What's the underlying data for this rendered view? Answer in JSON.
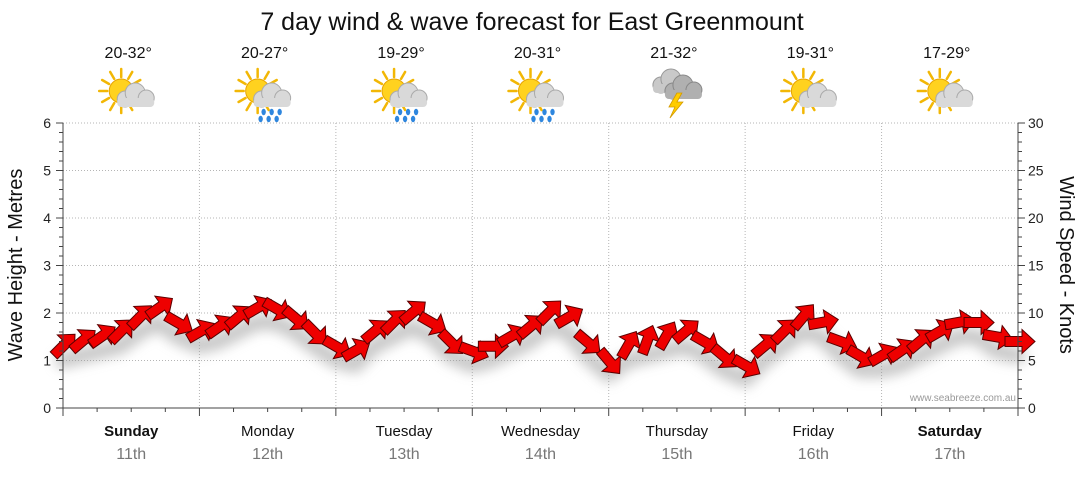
{
  "chart_data": {
    "type": "line",
    "title": "7 day wind & wave forecast for East Greenmount",
    "ylabel_left": "Wave Height - Metres",
    "ylabel_right": "Wind Speed - Knots",
    "ylim_left": [
      0,
      6
    ],
    "ylim_right": [
      0,
      30
    ],
    "yticks_left": [
      "0",
      "1",
      "2",
      "3",
      "4",
      "5",
      "6"
    ],
    "yticks_right": [
      "0",
      "5",
      "10",
      "15",
      "20",
      "25",
      "30"
    ],
    "grid": true,
    "watermark": "www.seabreeze.com.au",
    "days": [
      {
        "name": "Sunday",
        "date": "11th",
        "temp": "20-32°",
        "icon": "sun-cloud-icon",
        "bold": true
      },
      {
        "name": "Monday",
        "date": "12th",
        "temp": "20-27°",
        "icon": "sun-cloud-rain-icon",
        "bold": false
      },
      {
        "name": "Tuesday",
        "date": "13th",
        "temp": "19-29°",
        "icon": "sun-cloud-rain-icon",
        "bold": false
      },
      {
        "name": "Wednesday",
        "date": "14th",
        "temp": "20-31°",
        "icon": "sun-cloud-rain-icon",
        "bold": false
      },
      {
        "name": "Thursday",
        "date": "15th",
        "temp": "21-32°",
        "icon": "storm-cloud-icon",
        "bold": false
      },
      {
        "name": "Friday",
        "date": "16th",
        "temp": "19-31°",
        "icon": "sun-cloud-icon",
        "bold": false
      },
      {
        "name": "Saturday",
        "date": "17th",
        "temp": "17-29°",
        "icon": "sun-cloud-icon",
        "bold": true
      }
    ],
    "series": [
      {
        "unit": "knots",
        "color": "#ee0000",
        "x_days": [
          0,
          0.14,
          0.28,
          0.42,
          0.56,
          0.7,
          0.84,
          1.0,
          1.14,
          1.28,
          1.42,
          1.56,
          1.7,
          1.84,
          2.0,
          2.14,
          2.28,
          2.42,
          2.56,
          2.7,
          2.84,
          3.0,
          3.14,
          3.28,
          3.42,
          3.56,
          3.7,
          3.84,
          4.0,
          4.14,
          4.28,
          4.42,
          4.56,
          4.7,
          4.84,
          5.0,
          5.14,
          5.28,
          5.42,
          5.56,
          5.7,
          5.84,
          6.0,
          6.14,
          6.28,
          6.42,
          6.56,
          6.7,
          6.84,
          7.0
        ],
        "values": [
          6.5,
          7.0,
          7.5,
          8.0,
          9.5,
          10.5,
          9.0,
          8.0,
          8.5,
          9.5,
          10.5,
          10.5,
          9.5,
          8.0,
          6.5,
          6.0,
          8.0,
          9.0,
          10.0,
          9.0,
          7.0,
          6.0,
          6.5,
          7.5,
          8.5,
          10.0,
          9.5,
          7.0,
          5.0,
          6.5,
          7.0,
          7.5,
          8.0,
          7.0,
          5.5,
          4.5,
          6.5,
          8.0,
          9.5,
          9.0,
          7.0,
          5.5,
          5.5,
          6.0,
          7.0,
          8.0,
          9.0,
          9.0,
          7.5,
          7.0
        ],
        "direction_deg": [
          225,
          230,
          235,
          225,
          225,
          235,
          300,
          240,
          235,
          230,
          240,
          300,
          310,
          315,
          300,
          240,
          230,
          225,
          230,
          300,
          315,
          290,
          270,
          240,
          230,
          225,
          240,
          310,
          320,
          210,
          200,
          210,
          230,
          300,
          310,
          300,
          230,
          225,
          220,
          260,
          290,
          300,
          240,
          235,
          230,
          240,
          260,
          270,
          280,
          270
        ]
      }
    ]
  }
}
